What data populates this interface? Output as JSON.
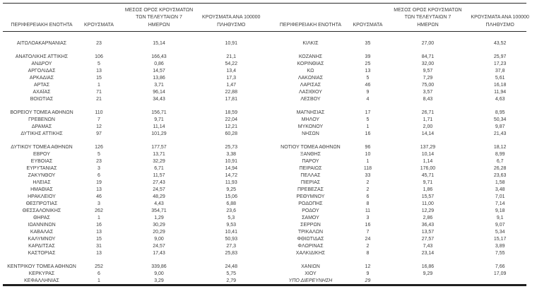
{
  "page": {
    "background_color": "#ffffff",
    "text_color": "#3c3c3c",
    "rule_color": "#1f1f1f"
  },
  "headers": {
    "region": "ΠΕΡΙΦΕΡΕΙΑΚΗ ΕΝΟΤΗΤΑ",
    "cases": "ΚΡΟΥΣΜΑΤΑ",
    "avg7": "ΜΕΣΟΣ ΟΡΟΣ ΚΡΟΥΣΜΑΤΩΝ\nΤΩΝ ΤΕΛΕΥΤΑΙΩΝ 7\nΗΜΕΡΩΝ",
    "per100k": "ΚΡΟΥΣΜΑΤΑ ΑΝΑ 100000\nΠΛΗΘΥΣΜΟ"
  },
  "tables": {
    "left": {
      "rows": [
        {
          "name": "ΑΙΤΩΛΟΑΚΑΡΝΑΝΙΑΣ",
          "cases": "23",
          "avg": "15,14",
          "per100k": "10,91"
        },
        {
          "spacer": true
        },
        {
          "name": "ΑΝΑΤΟΛΙΚΗΣ ΑΤΤΙΚΗΣ",
          "cases": "106",
          "avg": "166,43",
          "per100k": "21,1"
        },
        {
          "name": "ΑΝΔΡΟΥ",
          "cases": "5",
          "avg": "0,86",
          "per100k": "54,22"
        },
        {
          "name": "ΑΡΓΟΛΙΔΑΣ",
          "cases": "13",
          "avg": "14,57",
          "per100k": "13,4"
        },
        {
          "name": "ΑΡΚΑΔΙΑΣ",
          "cases": "15",
          "avg": "13,86",
          "per100k": "17,3"
        },
        {
          "name": "ΑΡΤΑΣ",
          "cases": "1",
          "avg": "3,71",
          "per100k": "1,47"
        },
        {
          "name": "ΑΧΑΪΑΣ",
          "cases": "71",
          "avg": "96,14",
          "per100k": "22,88"
        },
        {
          "name": "ΒΟΙΩΤΙΑΣ",
          "cases": "21",
          "avg": "34,43",
          "per100k": "17,81"
        },
        {
          "spacer": true
        },
        {
          "name": "ΒΟΡΕΙΟΥ ΤΟΜΕΑ ΑΘΗΝΩΝ",
          "cases": "110",
          "avg": "156,71",
          "per100k": "18,59"
        },
        {
          "name": "ΓΡΕΒΕΝΩΝ",
          "cases": "7",
          "avg": "9,71",
          "per100k": "22,04"
        },
        {
          "name": "ΔΡΑΜΑΣ",
          "cases": "12",
          "avg": "11,14",
          "per100k": "12,21"
        },
        {
          "name": "ΔΥΤΙΚΗΣ ΑΤΤΙΚΗΣ",
          "cases": "97",
          "avg": "101,29",
          "per100k": "60,28"
        },
        {
          "spacer": true
        },
        {
          "name": "ΔΥΤΙΚΟΥ ΤΟΜΕΑ ΑΘΗΝΩΝ",
          "cases": "126",
          "avg": "177,57",
          "per100k": "25,73"
        },
        {
          "name": "ΕΒΡΟΥ",
          "cases": "5",
          "avg": "13,71",
          "per100k": "3,38"
        },
        {
          "name": "ΕΥΒΟΙΑΣ",
          "cases": "23",
          "avg": "32,29",
          "per100k": "10,91"
        },
        {
          "name": "ΕΥΡΥΤΑΝΙΑΣ",
          "cases": "3",
          "avg": "6,71",
          "per100k": "14,94"
        },
        {
          "name": "ΖΑΚΥΝΘΟΥ",
          "cases": "6",
          "avg": "11,57",
          "per100k": "14,72"
        },
        {
          "name": "ΗΛΕΙΑΣ",
          "cases": "19",
          "avg": "27,43",
          "per100k": "11,93"
        },
        {
          "name": "ΗΜΑΘΙΑΣ",
          "cases": "13",
          "avg": "24,57",
          "per100k": "9,25"
        },
        {
          "name": "ΗΡΑΚΛΕΙΟΥ",
          "cases": "46",
          "avg": "48,29",
          "per100k": "15,06"
        },
        {
          "name": "ΘΕΣΠΡΩΤΙΑΣ",
          "cases": "3",
          "avg": "4,43",
          "per100k": "6,88"
        },
        {
          "name": "ΘΕΣΣΑΛΟΝΙΚΗΣ",
          "cases": "262",
          "avg": "354,71",
          "per100k": "23,6"
        },
        {
          "name": "ΘΗΡΑΣ",
          "cases": "1",
          "avg": "1,29",
          "per100k": "5,3"
        },
        {
          "name": "ΙΩΑΝΝΙΝΩΝ",
          "cases": "16",
          "avg": "30,29",
          "per100k": "9,53"
        },
        {
          "name": "ΚΑΒΑΛΑΣ",
          "cases": "13",
          "avg": "20,29",
          "per100k": "10,41"
        },
        {
          "name": "ΚΑΛΥΜΝΟΥ",
          "cases": "15",
          "avg": "9,00",
          "per100k": "50,93"
        },
        {
          "name": "ΚΑΡΔΙΤΣΑΣ",
          "cases": "31",
          "avg": "24,57",
          "per100k": "27,3"
        },
        {
          "name": "ΚΑΣΤΟΡΙΑΣ",
          "cases": "13",
          "avg": "17,43",
          "per100k": "25,83"
        },
        {
          "spacer": true
        },
        {
          "name": "ΚΕΝΤΡΙΚΟΥ ΤΟΜΕΑ ΑΘΗΝΩΝ",
          "cases": "252",
          "avg": "339,86",
          "per100k": "24,48"
        },
        {
          "name": "ΚΕΡΚΥΡΑΣ",
          "cases": "6",
          "avg": "9,00",
          "per100k": "5,75"
        },
        {
          "name": "ΚΕΦΑΛΛΗΝΙΑΣ",
          "cases": "1",
          "avg": "3,29",
          "per100k": "2,79"
        }
      ]
    },
    "right": {
      "rows": [
        {
          "name": "ΚΙΛΚΙΣ",
          "cases": "35",
          "avg": "27,00",
          "per100k": "43,52"
        },
        {
          "spacer": true
        },
        {
          "name": "ΚΟΖΑΝΗΣ",
          "cases": "39",
          "avg": "84,71",
          "per100k": "25,97"
        },
        {
          "name": "ΚΟΡΙΝΘΙΑΣ",
          "cases": "25",
          "avg": "32,00",
          "per100k": "17,23"
        },
        {
          "name": "ΚΩ",
          "cases": "13",
          "avg": "9,57",
          "per100k": "37,8"
        },
        {
          "name": "ΛΑΚΩΝΙΑΣ",
          "cases": "5",
          "avg": "7,29",
          "per100k": "5,61"
        },
        {
          "name": "ΛΑΡΙΣΑΣ",
          "cases": "46",
          "avg": "75,00",
          "per100k": "16,18"
        },
        {
          "name": "ΛΑΣΙΘΙΟΥ",
          "cases": "9",
          "avg": "3,57",
          "per100k": "11,94"
        },
        {
          "name": "ΛΕΣΒΟΥ",
          "cases": "4",
          "avg": "8,43",
          "per100k": "4,63"
        },
        {
          "spacer": true
        },
        {
          "name": "ΜΑΓΝΗΣΙΑΣ",
          "cases": "17",
          "avg": "26,71",
          "per100k": "8,95"
        },
        {
          "name": "ΜΗΛΟΥ",
          "cases": "5",
          "avg": "1,71",
          "per100k": "50,34"
        },
        {
          "name": "ΜΥΚΟΝΟΥ",
          "cases": "1",
          "avg": "2,00",
          "per100k": "9,87"
        },
        {
          "name": "ΝΗΣΩΝ",
          "cases": "16",
          "avg": "14,14",
          "per100k": "21,43"
        },
        {
          "spacer": true
        },
        {
          "name": "ΝΟΤΙΟΥ ΤΟΜΕΑ ΑΘΗΝΩΝ",
          "cases": "96",
          "avg": "137,29",
          "per100k": "18,12"
        },
        {
          "name": "ΞΑΝΘΗΣ",
          "cases": "10",
          "avg": "10,14",
          "per100k": "8,99"
        },
        {
          "name": "ΠΑΡΟΥ",
          "cases": "1",
          "avg": "1,14",
          "per100k": "6,7"
        },
        {
          "name": "ΠΕΙΡΑΙΩΣ",
          "cases": "118",
          "avg": "176,00",
          "per100k": "26,28"
        },
        {
          "name": "ΠΕΛΛΑΣ",
          "cases": "33",
          "avg": "45,71",
          "per100k": "23,63"
        },
        {
          "name": "ΠΙΕΡΙΑΣ",
          "cases": "2",
          "avg": "9,71",
          "per100k": "1,58"
        },
        {
          "name": "ΠΡΕΒΕΖΑΣ",
          "cases": "2",
          "avg": "1,86",
          "per100k": "3,48"
        },
        {
          "name": "ΡΕΘΥΜΝΟΥ",
          "cases": "6",
          "avg": "15,57",
          "per100k": "7,01"
        },
        {
          "name": "ΡΟΔΟΠΗΣ",
          "cases": "8",
          "avg": "11,00",
          "per100k": "7,14"
        },
        {
          "name": "ΡΟΔΟΥ",
          "cases": "11",
          "avg": "12,29",
          "per100k": "9,18"
        },
        {
          "name": "ΣΑΜΟΥ",
          "cases": "3",
          "avg": "2,86",
          "per100k": "9,1"
        },
        {
          "name": "ΣΕΡΡΩΝ",
          "cases": "16",
          "avg": "36,43",
          "per100k": "9,07"
        },
        {
          "name": "ΤΡΙΚΑΛΩΝ",
          "cases": "7",
          "avg": "13,57",
          "per100k": "5,34"
        },
        {
          "name": "ΦΘΙΩΤΙΔΑΣ",
          "cases": "24",
          "avg": "27,57",
          "per100k": "15,17"
        },
        {
          "name": "ΦΛΩΡΙΝΑΣ",
          "cases": "2",
          "avg": "7,43",
          "per100k": "3,89"
        },
        {
          "name": "ΧΑΛΚΙΔΙΚΗΣ",
          "cases": "8",
          "avg": "23,14",
          "per100k": "7,55"
        },
        {
          "spacer": true
        },
        {
          "name": "ΧΑΝΙΩΝ",
          "cases": "12",
          "avg": "16,86",
          "per100k": "7,66"
        },
        {
          "name": "ΧΙΟΥ",
          "cases": "9",
          "avg": "9,29",
          "per100k": "17,09"
        },
        {
          "name": "ΥΠΟ ΔΙΕΡΕΥΝΗΣΗ",
          "cases": "29",
          "avg": "",
          "per100k": "",
          "italic": true
        }
      ]
    }
  }
}
